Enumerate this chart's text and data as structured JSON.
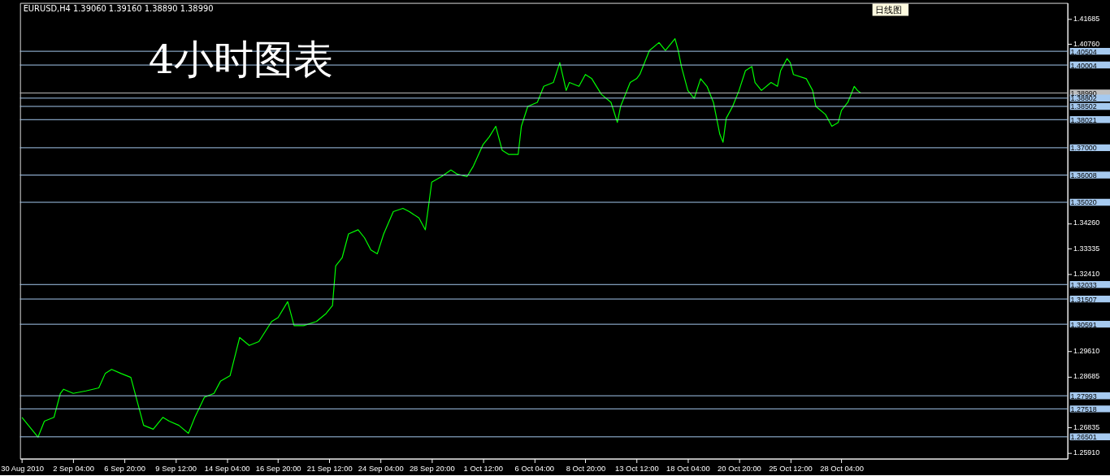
{
  "chart_data": {
    "type": "line",
    "title": "EURUSD,H4  1.39060 1.39160 1.38890 1.38990",
    "annotations": [
      "4小时图表",
      "日线图"
    ],
    "categories": [
      "30 Aug 2010",
      null,
      null,
      null,
      null,
      null,
      null,
      null,
      null,
      null,
      null,
      null,
      null,
      null,
      null,
      null,
      "2 Sep 04:00",
      null,
      null,
      null,
      null,
      null,
      null,
      null,
      null,
      null,
      null,
      null,
      null,
      null,
      null,
      null,
      "6 Sep 20:00",
      null,
      null,
      null,
      null,
      null,
      null,
      null,
      null,
      null,
      null,
      null,
      null,
      null,
      null,
      null,
      "9 Sep 12:00",
      null,
      null,
      null,
      null,
      null,
      null,
      null,
      null,
      null,
      null,
      null,
      null,
      null,
      null,
      null,
      "14 Sep 04:00",
      null,
      null,
      null,
      null,
      null,
      null,
      null,
      null,
      null,
      null,
      null,
      null,
      null,
      null,
      null,
      "16 Sep 20:00",
      null,
      null,
      null,
      null,
      null,
      null,
      null,
      null,
      null,
      null,
      null,
      null,
      null,
      null,
      null,
      "21 Sep 12:00",
      null,
      null,
      null,
      null,
      null,
      null,
      null,
      null,
      null,
      null,
      null,
      null,
      null,
      null,
      null,
      "24 Sep 04:00",
      null,
      null,
      null,
      null,
      null,
      null,
      null,
      null,
      null,
      null,
      null,
      null,
      null,
      null,
      null,
      "28 Sep 20:00",
      null,
      null,
      null,
      null,
      null,
      null,
      null,
      null,
      null,
      null,
      null,
      null,
      null,
      null,
      null,
      "1 Oct 12:00",
      null,
      null,
      null,
      null,
      null,
      null,
      null,
      null,
      null,
      null,
      null,
      null,
      null,
      null,
      null,
      "6 Oct 04:00",
      null,
      null,
      null,
      null,
      null,
      null,
      null,
      null,
      null,
      null,
      null,
      null,
      null,
      null,
      null,
      "8 Oct 20:00",
      null,
      null,
      null,
      null,
      null,
      null,
      null,
      null,
      null,
      null,
      null,
      null,
      null,
      null,
      null,
      "13 Oct 12:00",
      null,
      null,
      null,
      null,
      null,
      null,
      null,
      null,
      null,
      null,
      null,
      null,
      null,
      null,
      null,
      "18 Oct 04:00",
      null,
      null,
      null,
      null,
      null,
      null,
      null,
      null,
      null,
      null,
      null,
      null,
      null,
      null,
      null,
      "20 Oct 20:00",
      null,
      null,
      null,
      null,
      null,
      null,
      null,
      null,
      null,
      null,
      null,
      null,
      null,
      null,
      null,
      "25 Oct 12:00",
      null,
      null,
      null,
      null,
      null,
      null,
      null,
      null,
      null,
      null,
      null,
      null,
      null,
      null,
      null,
      "28 Oct 04:00",
      null,
      null,
      null,
      null,
      null,
      null,
      null,
      null,
      null,
      null,
      null,
      null,
      null,
      null,
      null,
      null,
      null,
      null,
      null,
      null,
      null,
      null,
      null,
      null,
      null,
      null,
      null,
      null,
      null,
      null,
      null,
      null,
      null,
      null,
      null,
      null,
      null,
      null,
      null,
      null,
      null,
      null,
      null,
      null,
      null,
      null,
      null,
      null,
      null,
      null,
      null,
      null,
      null,
      null,
      null,
      null,
      null,
      null,
      null,
      null,
      null,
      null,
      null,
      null,
      null,
      null,
      null,
      null,
      null,
      null
    ],
    "series": [
      {
        "color": "#00ff00",
        "values": [
          1.2721,
          null,
          1.2692,
          null,
          null,
          1.2649,
          null,
          1.2707,
          null,
          null,
          1.2721,
          null,
          1.2808,
          1.2823,
          null,
          null,
          1.2808,
          null,
          null,
          null,
          1.2817,
          null,
          null,
          null,
          1.2828,
          null,
          1.288,
          null,
          1.2895,
          null,
          null,
          1.288,
          null,
          null,
          1.2866,
          null,
          1.2779,
          null,
          1.2692,
          null,
          null,
          1.2678,
          null,
          null,
          1.2721,
          null,
          1.2707,
          null,
          null,
          1.2692,
          null,
          null,
          1.2663,
          null,
          1.2721,
          null,
          null,
          1.2794,
          null,
          null,
          1.2808,
          null,
          1.2852,
          null,
          null,
          1.2872,
          null,
          null,
          1.3011,
          null,
          null,
          1.2982,
          null,
          null,
          1.2996,
          null,
          null,
          null,
          1.3069,
          null,
          1.3083,
          null,
          null,
          1.3141,
          null,
          1.3054,
          null,
          null,
          1.3054,
          null,
          null,
          null,
          1.3069,
          null,
          null,
          1.3098,
          null,
          1.3127,
          1.3271,
          null,
          1.33,
          null,
          1.3387,
          null,
          null,
          1.3402,
          null,
          1.3373,
          null,
          1.3329,
          null,
          1.3315,
          null,
          1.3387,
          null,
          null,
          1.3468,
          null,
          null,
          1.348,
          null,
          1.3468,
          null,
          null,
          1.3445,
          null,
          1.3402,
          1.3488,
          1.3575,
          null,
          null,
          1.3595,
          null,
          null,
          1.3619,
          null,
          1.3604,
          null,
          null,
          1.3595,
          null,
          1.3633,
          null,
          null,
          1.3711,
          null,
          1.374,
          null,
          1.3778,
          null,
          1.3691,
          null,
          1.3676,
          null,
          null,
          1.3676,
          1.3778,
          null,
          1.385,
          null,
          null,
          1.3865,
          null,
          1.3923,
          null,
          null,
          1.3937,
          null,
          1.4009,
          null,
          1.3908,
          1.3937,
          null,
          null,
          1.3923,
          null,
          1.3966,
          null,
          1.3951,
          null,
          null,
          1.3894,
          null,
          null,
          1.3865,
          null,
          1.3792,
          1.385,
          null,
          null,
          1.3937,
          null,
          1.3951,
          1.3966,
          null,
          null,
          1.4053,
          null,
          null,
          1.4082,
          null,
          1.4053,
          null,
          null,
          1.4096,
          1.4053,
          1.3995,
          null,
          1.3908,
          null,
          1.3879,
          null,
          1.3951,
          null,
          1.3923,
          null,
          1.3865,
          null,
          1.3749,
          1.372,
          1.3807,
          null,
          1.385,
          null,
          1.3908,
          null,
          1.398,
          null,
          1.3995,
          1.3937,
          null,
          1.3908,
          null,
          null,
          1.3937,
          null,
          1.3923,
          1.398,
          null,
          1.4024,
          1.4009,
          1.3966,
          null,
          null,
          null,
          1.3951,
          null,
          1.3908,
          1.385,
          null,
          null,
          1.3821,
          null,
          1.3778,
          null,
          1.3792,
          1.3836,
          null,
          1.3865,
          null,
          1.3923,
          1.3908,
          1.3899,
          null,
          null,
          null,
          null,
          null,
          null,
          null,
          null,
          null,
          null,
          null,
          null,
          null,
          null,
          null,
          null,
          null,
          null,
          null,
          null,
          null,
          null,
          null,
          null,
          null,
          null,
          null,
          null,
          null,
          null,
          null,
          null,
          null,
          null,
          null,
          null,
          null,
          null,
          null,
          null,
          null,
          null,
          null,
          null,
          null,
          null,
          null,
          null,
          null,
          null,
          null,
          null,
          null,
          null,
          null,
          null,
          null,
          null,
          null,
          null,
          null,
          null,
          null,
          null
        ]
      }
    ],
    "ylim": [
      1.2571,
      1.4226
    ],
    "yticks": [
      1.41685,
      {
        "value": 1.4076,
        "label": "1.40760"
      },
      {
        "value": 1.3426,
        "label": "1.34260"
      },
      1.33335,
      {
        "value": 1.3241,
        "label": "1.32410"
      },
      {
        "value": 1.2961,
        "label": "1.29610"
      },
      1.28685,
      1.26835,
      {
        "value": 1.2591,
        "label": "1.25910"
      }
    ],
    "ref_lines": [
      {
        "axis": "y",
        "value": 1.40504,
        "label": "1.40504",
        "color": "#a6caf0"
      },
      {
        "axis": "y",
        "value": 1.40004,
        "label": "1.40004",
        "color": "#a6caf0"
      },
      {
        "axis": "y",
        "value": 1.3899,
        "label": "1.38990",
        "color": "#c0c0c0"
      },
      {
        "axis": "y",
        "value": 1.38802,
        "label": "1.38802",
        "color": "#a6caf0"
      },
      {
        "axis": "y",
        "value": 1.38502,
        "label": "1.38502",
        "color": "#a6caf0"
      },
      {
        "axis": "y",
        "value": 1.38021,
        "label": "1.38021",
        "color": "#a6caf0"
      },
      {
        "axis": "y",
        "value": 1.37,
        "label": "1.37000",
        "color": "#a6caf0"
      },
      {
        "axis": "y",
        "value": 1.36008,
        "label": "1.36008",
        "color": "#a6caf0"
      },
      {
        "axis": "y",
        "value": 1.3502,
        "label": "1.35020",
        "color": "#a6caf0"
      },
      {
        "axis": "y",
        "value": 1.32033,
        "label": "1.32033",
        "color": "#a6caf0"
      },
      {
        "axis": "y",
        "value": 1.31507,
        "label": "1.31507",
        "color": "#a6caf0"
      },
      {
        "axis": "y",
        "value": 1.30591,
        "label": "1.30591",
        "color": "#a6caf0"
      },
      {
        "axis": "y",
        "value": 1.27993,
        "label": "1.27993",
        "color": "#a6caf0"
      },
      {
        "axis": "y",
        "value": 1.27518,
        "label": "1.27518",
        "color": "#a6caf0"
      },
      {
        "axis": "y",
        "value": 1.26501,
        "label": "1.26501",
        "color": "#a6caf0"
      }
    ],
    "grid": false,
    "legend": false,
    "marker": "none",
    "line_style": "solid"
  }
}
